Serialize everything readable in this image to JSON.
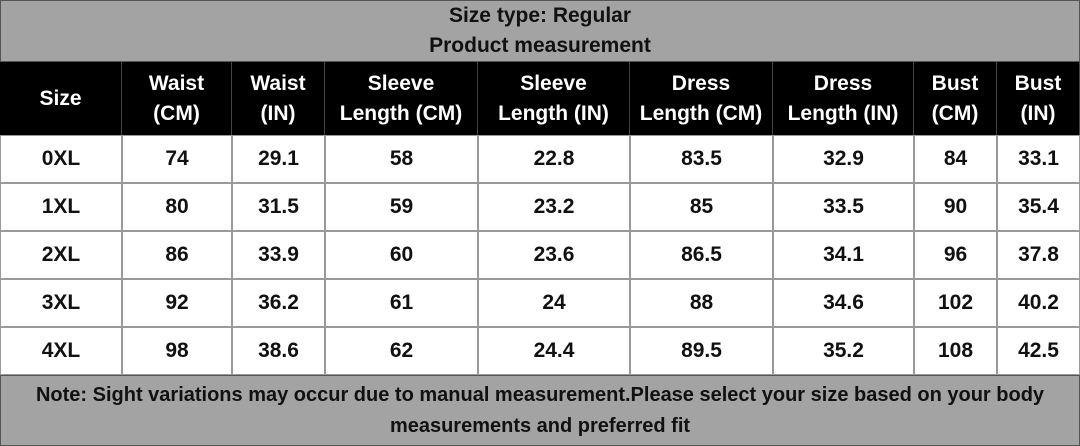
{
  "header": {
    "title": "Size type: Regular",
    "subtitle": "Product measurement"
  },
  "table": {
    "columns": [
      [
        "Size"
      ],
      [
        "Waist",
        "(CM)"
      ],
      [
        "Waist",
        "(IN)"
      ],
      [
        "Sleeve",
        "Length (CM)"
      ],
      [
        "Sleeve",
        "Length (IN)"
      ],
      [
        "Dress",
        "Length (CM)"
      ],
      [
        "Dress",
        "Length (IN)"
      ],
      [
        "Bust",
        "(CM)"
      ],
      [
        "Bust",
        "(IN)"
      ]
    ],
    "rows": [
      [
        "0XL",
        74,
        29.1,
        58,
        22.8,
        83.5,
        32.9,
        84,
        33.1
      ],
      [
        "1XL",
        80,
        31.5,
        59,
        23.2,
        85,
        33.5,
        90,
        35.4
      ],
      [
        "2XL",
        86,
        33.9,
        60,
        23.6,
        86.5,
        34.1,
        96,
        37.8
      ],
      [
        "3XL",
        92,
        36.2,
        61,
        24,
        88,
        34.6,
        102,
        40.2
      ],
      [
        "4XL",
        98,
        38.6,
        62,
        24.4,
        89.5,
        35.2,
        108,
        42.5
      ]
    ]
  },
  "note": "Note: Sight variations may occur due to manual measurement.Please select your size based on your body measurements and preferred fit"
}
